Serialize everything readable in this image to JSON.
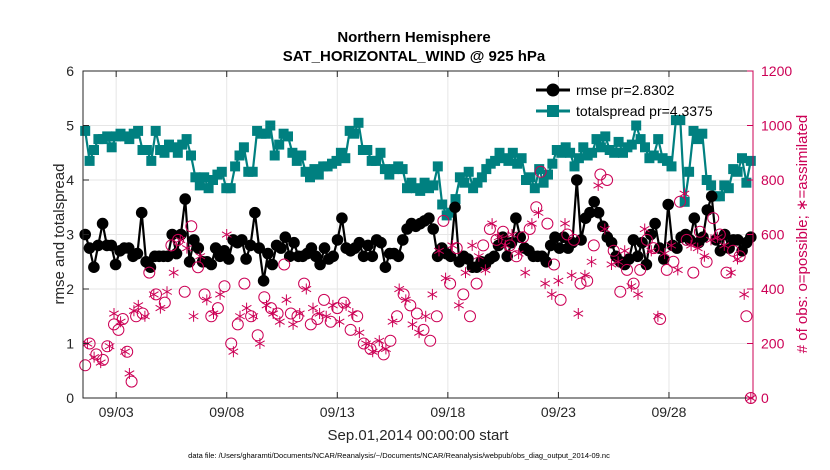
{
  "chart_data": {
    "type": "line",
    "title": "Northern Hemisphere",
    "subtitle": "SAT_HORIZONTAL_WIND @ 925 hPa",
    "xlabel": "Sep.01,2014 00:00:00 start",
    "ylabel_left": "rmse and totalspread",
    "ylabel_right": "# of obs: o=possible; ∗=assimilated",
    "footnote": "data file: /Users/gharamti/Documents/NCAR/Reanalysis/~/Documents/NCAR/Reanalysis/webpub/obs_diag_output_2014-09.nc",
    "xlim": [
      1.5,
      31.8
    ],
    "ylim_left": [
      0,
      6
    ],
    "ylim_right": [
      0,
      1200
    ],
    "x_ticks": [
      {
        "x": 3,
        "label": "09/03"
      },
      {
        "x": 8,
        "label": "09/08"
      },
      {
        "x": 13,
        "label": "09/13"
      },
      {
        "x": 18,
        "label": "09/18"
      },
      {
        "x": 23,
        "label": "09/23"
      },
      {
        "x": 28,
        "label": "09/28"
      }
    ],
    "yticks_left": [
      0,
      1,
      2,
      3,
      4,
      5,
      6
    ],
    "yticks_right": [
      0,
      200,
      400,
      600,
      800,
      1000,
      1200
    ],
    "grid": true,
    "legend_location": "top-right",
    "colors": {
      "rmse": "#000000",
      "totalspread": "#008080",
      "obs": "#cc0055",
      "grid": "#e6e6e6",
      "axis": "#262626"
    },
    "series": [
      {
        "name": "rmse",
        "legend": "rmse pr=2.8302",
        "axis": "left",
        "values": [
          3.0,
          2.75,
          2.4,
          2.8,
          3.2,
          2.8,
          2.8,
          2.45,
          2.7,
          2.75,
          2.75,
          2.6,
          2.65,
          3.4,
          2.5,
          2.4,
          2.6,
          2.6,
          2.6,
          2.6,
          3.0,
          2.65,
          3.0,
          3.65,
          2.5,
          2.9,
          2.75,
          2.5,
          2.5,
          2.45,
          2.75,
          2.6,
          2.7,
          2.55,
          2.9,
          2.85,
          2.9,
          2.55,
          2.8,
          3.4,
          2.75,
          2.15,
          2.65,
          2.45,
          2.8,
          2.75,
          2.95,
          2.6,
          2.85,
          2.6,
          2.6,
          2.65,
          2.75,
          2.6,
          2.45,
          2.75,
          2.55,
          2.6,
          2.9,
          3.3,
          2.75,
          2.7,
          2.75,
          2.85,
          2.6,
          2.8,
          2.6,
          2.9,
          2.85,
          2.4,
          2.65,
          2.65,
          2.6,
          2.9,
          3.1,
          3.2,
          3.15,
          3.2,
          3.25,
          3.3,
          3.1,
          2.6,
          2.75,
          2.65,
          2.6,
          3.5,
          2.5,
          2.6,
          2.55,
          2.4,
          2.4,
          2.5,
          2.45,
          2.55,
          2.6,
          2.8,
          2.95,
          2.6,
          2.85,
          3.3,
          2.95,
          2.75,
          2.7,
          2.6,
          2.6,
          2.6,
          2.5,
          2.8,
          2.95,
          2.75,
          2.95,
          2.75,
          2.85,
          4.0,
          2.9,
          3.3,
          3.4,
          3.6,
          3.4,
          3.15,
          2.95,
          2.85,
          2.6,
          2.5,
          2.45,
          2.55,
          2.9,
          2.6,
          2.85,
          2.45,
          3.0,
          3.2,
          2.75,
          2.55,
          3.55,
          2.8,
          2.75,
          2.95,
          3.0,
          2.9,
          3.3,
          2.85,
          2.95,
          3.45,
          3.7,
          2.9,
          2.7,
          3.0,
          2.75,
          2.9,
          2.9,
          2.7,
          2.85,
          2.95
        ],
        "mode": "line+filled-circle"
      },
      {
        "name": "totalspread",
        "legend": "totalspread pr=4.3375",
        "axis": "left",
        "values": [
          4.9,
          4.35,
          4.55,
          4.75,
          4.75,
          4.8,
          4.6,
          4.8,
          4.85,
          4.8,
          4.75,
          4.85,
          4.9,
          4.55,
          4.55,
          4.35,
          4.9,
          4.55,
          4.5,
          4.65,
          4.6,
          4.5,
          4.65,
          4.75,
          4.45,
          4.05,
          3.9,
          4.05,
          3.85,
          4.0,
          4.1,
          4.15,
          3.85,
          3.85,
          4.25,
          4.45,
          4.6,
          4.15,
          4.15,
          4.9,
          4.85,
          4.85,
          5.0,
          4.45,
          4.65,
          4.85,
          4.8,
          4.5,
          4.35,
          4.45,
          4.15,
          4.05,
          4.2,
          4.1,
          4.25,
          4.25,
          4.3,
          4.35,
          4.5,
          4.4,
          4.9,
          4.85,
          5.05,
          4.55,
          4.55,
          4.35,
          4.35,
          4.5,
          4.2,
          4.1,
          4.2,
          4.25,
          4.2,
          3.85,
          3.95,
          3.85,
          3.8,
          3.95,
          3.85,
          3.9,
          4.25,
          3.55,
          3.35,
          3.4,
          3.65,
          4.05,
          3.95,
          4.15,
          3.85,
          3.95,
          4.05,
          4.2,
          4.3,
          4.35,
          4.5,
          4.4,
          4.35,
          4.5,
          4.3,
          4.4,
          4.0,
          4.05,
          3.85,
          4.2,
          3.95,
          4.1,
          4.3,
          4.55,
          4.5,
          4.6,
          4.5,
          4.25,
          4.4,
          4.6,
          4.45,
          4.5,
          4.75,
          4.6,
          4.8,
          4.55,
          4.5,
          4.7,
          4.5,
          4.6,
          4.65,
          5.0,
          4.75,
          4.6,
          4.4,
          4.45,
          4.75,
          4.4,
          4.35,
          4.25,
          5.1,
          5.1,
          3.6,
          4.15,
          4.9,
          4.75,
          4.85,
          4.0,
          3.9,
          3.7,
          3.7,
          3.9,
          3.85,
          4.2,
          4.15,
          4.4,
          3.95,
          4.35
        ],
        "mode": "line+filled-square"
      },
      {
        "name": "obs possible",
        "axis": "right",
        "marker": "circle",
        "values": [
          [
            1.6,
            120
          ],
          [
            1.8,
            200
          ],
          [
            2.1,
            160
          ],
          [
            2.4,
            140
          ],
          [
            2.6,
            190
          ],
          [
            2.9,
            270
          ],
          [
            3.1,
            250
          ],
          [
            3.3,
            290
          ],
          [
            3.5,
            170
          ],
          [
            3.7,
            60
          ],
          [
            3.9,
            300
          ],
          [
            4.2,
            310
          ],
          [
            4.5,
            460
          ],
          [
            4.8,
            380
          ],
          [
            5.2,
            350
          ],
          [
            5.5,
            560
          ],
          [
            5.8,
            580
          ],
          [
            6.1,
            390
          ],
          [
            6.4,
            630
          ],
          [
            6.7,
            480
          ],
          [
            7.0,
            380
          ],
          [
            7.3,
            300
          ],
          [
            7.6,
            330
          ],
          [
            7.9,
            410
          ],
          [
            8.2,
            200
          ],
          [
            8.5,
            270
          ],
          [
            8.8,
            420
          ],
          [
            9.1,
            300
          ],
          [
            9.4,
            230
          ],
          [
            9.7,
            370
          ],
          [
            10.0,
            330
          ],
          [
            10.3,
            310
          ],
          [
            10.6,
            490
          ],
          [
            10.9,
            310
          ],
          [
            11.2,
            300
          ],
          [
            11.5,
            420
          ],
          [
            11.8,
            270
          ],
          [
            12.1,
            290
          ],
          [
            12.4,
            360
          ],
          [
            12.7,
            280
          ],
          [
            13.0,
            330
          ],
          [
            13.3,
            350
          ],
          [
            13.6,
            250
          ],
          [
            13.9,
            300
          ],
          [
            14.2,
            200
          ],
          [
            14.5,
            180
          ],
          [
            14.8,
            190
          ],
          [
            15.1,
            160
          ],
          [
            15.4,
            210
          ],
          [
            15.7,
            300
          ],
          [
            16.0,
            380
          ],
          [
            16.3,
            340
          ],
          [
            16.6,
            310
          ],
          [
            16.9,
            250
          ],
          [
            17.2,
            210
          ],
          [
            17.5,
            300
          ],
          [
            17.8,
            650
          ],
          [
            18.1,
            420
          ],
          [
            18.4,
            550
          ],
          [
            18.7,
            380
          ],
          [
            19.0,
            300
          ],
          [
            19.3,
            420
          ],
          [
            19.6,
            560
          ],
          [
            19.9,
            620
          ],
          [
            20.2,
            580
          ],
          [
            20.5,
            610
          ],
          [
            20.8,
            560
          ],
          [
            21.1,
            520
          ],
          [
            21.4,
            590
          ],
          [
            21.7,
            620
          ],
          [
            22.0,
            700
          ],
          [
            22.2,
            830
          ],
          [
            22.5,
            640
          ],
          [
            22.8,
            490
          ],
          [
            23.1,
            360
          ],
          [
            23.4,
            600
          ],
          [
            23.7,
            580
          ],
          [
            24.0,
            420
          ],
          [
            24.3,
            430
          ],
          [
            24.6,
            560
          ],
          [
            24.9,
            820
          ],
          [
            25.2,
            800
          ],
          [
            25.5,
            540
          ],
          [
            25.8,
            390
          ],
          [
            26.1,
            470
          ],
          [
            26.4,
            420
          ],
          [
            26.7,
            470
          ],
          [
            27.0,
            580
          ],
          [
            27.3,
            550
          ],
          [
            27.6,
            290
          ],
          [
            27.9,
            470
          ],
          [
            28.2,
            500
          ],
          [
            28.5,
            720
          ],
          [
            28.8,
            580
          ],
          [
            29.1,
            460
          ],
          [
            29.4,
            610
          ],
          [
            29.7,
            500
          ],
          [
            30.0,
            660
          ],
          [
            30.3,
            600
          ],
          [
            30.6,
            460
          ],
          [
            30.9,
            540
          ],
          [
            31.2,
            520
          ],
          [
            31.5,
            300
          ],
          [
            31.7,
            0
          ]
        ]
      },
      {
        "name": "obs assimilated",
        "axis": "right",
        "marker": "asterisk",
        "values": [
          [
            1.7,
            200
          ],
          [
            2.0,
            150
          ],
          [
            2.3,
            130
          ],
          [
            2.7,
            190
          ],
          [
            2.9,
            310
          ],
          [
            3.2,
            280
          ],
          [
            3.4,
            170
          ],
          [
            3.6,
            90
          ],
          [
            3.8,
            320
          ],
          [
            4.0,
            340
          ],
          [
            4.3,
            300
          ],
          [
            4.7,
            380
          ],
          [
            5.0,
            330
          ],
          [
            5.3,
            390
          ],
          [
            5.6,
            460
          ],
          [
            5.9,
            580
          ],
          [
            6.2,
            550
          ],
          [
            6.5,
            300
          ],
          [
            6.8,
            520
          ],
          [
            7.1,
            360
          ],
          [
            7.4,
            310
          ],
          [
            7.7,
            380
          ],
          [
            8.0,
            600
          ],
          [
            8.3,
            170
          ],
          [
            8.6,
            300
          ],
          [
            8.9,
            330
          ],
          [
            9.2,
            300
          ],
          [
            9.5,
            200
          ],
          [
            9.8,
            340
          ],
          [
            10.1,
            310
          ],
          [
            10.4,
            280
          ],
          [
            10.7,
            360
          ],
          [
            11.0,
            270
          ],
          [
            11.3,
            310
          ],
          [
            11.6,
            400
          ],
          [
            11.9,
            330
          ],
          [
            12.2,
            310
          ],
          [
            12.5,
            300
          ],
          [
            12.8,
            340
          ],
          [
            13.1,
            280
          ],
          [
            13.4,
            340
          ],
          [
            13.7,
            310
          ],
          [
            14.0,
            240
          ],
          [
            14.3,
            200
          ],
          [
            14.6,
            170
          ],
          [
            14.9,
            210
          ],
          [
            15.2,
            180
          ],
          [
            15.5,
            280
          ],
          [
            15.8,
            400
          ],
          [
            16.1,
            360
          ],
          [
            16.4,
            270
          ],
          [
            16.7,
            240
          ],
          [
            17.0,
            300
          ],
          [
            17.3,
            380
          ],
          [
            17.6,
            540
          ],
          [
            17.9,
            440
          ],
          [
            18.2,
            560
          ],
          [
            18.5,
            340
          ],
          [
            18.8,
            460
          ],
          [
            19.1,
            560
          ],
          [
            19.4,
            520
          ],
          [
            19.7,
            470
          ],
          [
            20.0,
            640
          ],
          [
            20.3,
            590
          ],
          [
            20.6,
            560
          ],
          [
            20.9,
            600
          ],
          [
            21.2,
            530
          ],
          [
            21.5,
            460
          ],
          [
            21.8,
            640
          ],
          [
            22.1,
            680
          ],
          [
            22.4,
            420
          ],
          [
            22.7,
            380
          ],
          [
            23.0,
            430
          ],
          [
            23.3,
            640
          ],
          [
            23.6,
            450
          ],
          [
            23.9,
            310
          ],
          [
            24.2,
            450
          ],
          [
            24.5,
            500
          ],
          [
            24.8,
            780
          ],
          [
            25.1,
            620
          ],
          [
            25.4,
            490
          ],
          [
            25.7,
            500
          ],
          [
            26.0,
            540
          ],
          [
            26.3,
            410
          ],
          [
            26.6,
            380
          ],
          [
            26.9,
            620
          ],
          [
            27.2,
            540
          ],
          [
            27.5,
            300
          ],
          [
            27.8,
            530
          ],
          [
            28.1,
            560
          ],
          [
            28.4,
            470
          ],
          [
            28.7,
            750
          ],
          [
            29.0,
            560
          ],
          [
            29.3,
            550
          ],
          [
            29.6,
            520
          ],
          [
            29.9,
            580
          ],
          [
            30.2,
            590
          ],
          [
            30.5,
            560
          ],
          [
            30.8,
            460
          ],
          [
            31.1,
            510
          ],
          [
            31.4,
            380
          ],
          [
            31.7,
            0
          ]
        ]
      }
    ]
  }
}
